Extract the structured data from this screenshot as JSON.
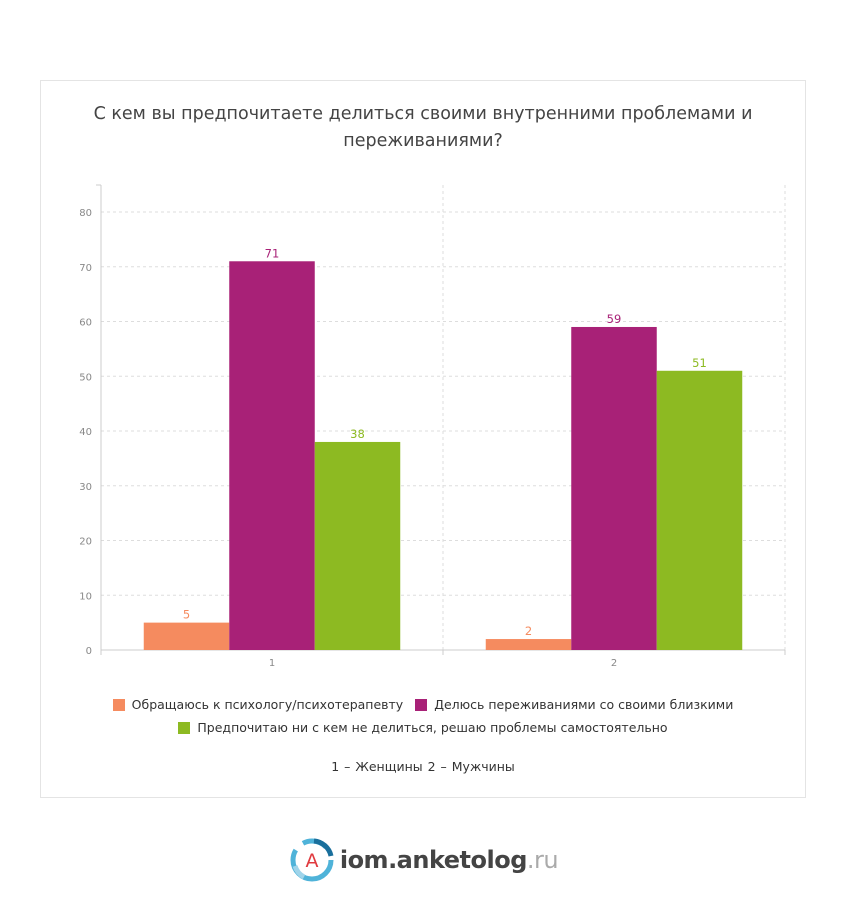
{
  "chart_data": {
    "type": "bar",
    "title": "С кем вы предпочитаете делиться своими внутренними проблемами и переживаниями?",
    "categories": [
      "1",
      "2"
    ],
    "series": [
      {
        "name": "Обращаюсь к психологу/психотерапевту",
        "values": [
          5,
          2
        ],
        "color": "#f58b5f"
      },
      {
        "name": "Делюсь переживаниями со своими близкими",
        "values": [
          71,
          59
        ],
        "color": "#a82177"
      },
      {
        "name": "Предпочитаю ни с кем не делиться, решаю проблемы самостоятельно",
        "values": [
          38,
          51
        ],
        "color": "#8dba22"
      }
    ],
    "yticks": [
      0,
      10,
      20,
      30,
      40,
      50,
      60,
      70,
      80
    ],
    "ylim": [
      0,
      85
    ],
    "xlabel": "",
    "ylabel": "",
    "grid": true,
    "legend": "bottom"
  },
  "note": "1 – Женщины    2 – Мужчины",
  "footer": {
    "logo_letter": "A",
    "brand": "iom.anketolog",
    "brand_suffix": ".ru"
  }
}
